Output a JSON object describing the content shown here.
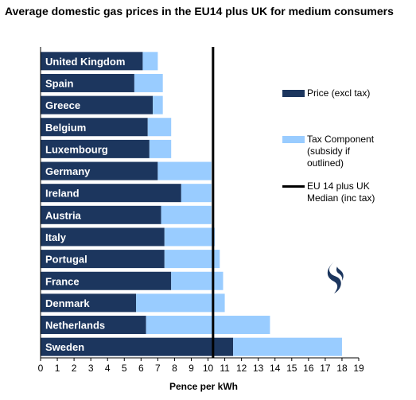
{
  "chart_data": {
    "type": "bar",
    "orientation": "horizontal",
    "stacked": true,
    "title": "Average domestic gas prices in the EU14 plus UK for medium consumers",
    "xlabel": "Pence per kWh",
    "ylabel": "",
    "xlim": [
      0,
      19
    ],
    "xticks": [
      "0",
      "1",
      "2",
      "3",
      "4",
      "5",
      "6",
      "7",
      "8",
      "9",
      "10",
      "11",
      "12",
      "13",
      "14",
      "15",
      "16",
      "17",
      "18",
      "19"
    ],
    "categories": [
      "United Kingdom",
      "Spain",
      "Greece",
      "Belgium",
      "Luxembourg",
      "Germany",
      "Ireland",
      "Austria",
      "Italy",
      "Portugal",
      "France",
      "Denmark",
      "Netherlands",
      "Sweden"
    ],
    "series": [
      {
        "name": "Price (excl tax)",
        "color": "#1c365e",
        "values": [
          6.1,
          5.6,
          6.7,
          6.4,
          6.5,
          7.0,
          8.4,
          7.2,
          7.4,
          7.4,
          7.8,
          5.7,
          6.3,
          11.5
        ]
      },
      {
        "name": "Tax Component (subsidy if outlined)",
        "color": "#99ccff",
        "values": [
          0.9,
          1.7,
          0.6,
          1.4,
          1.3,
          3.2,
          1.8,
          3.0,
          3.0,
          3.3,
          3.1,
          5.3,
          7.4,
          6.5
        ]
      }
    ],
    "reference_line": {
      "name": "EU 14 plus UK Median (inc tax)",
      "value": 10.3,
      "color": "#000000"
    },
    "grid": false,
    "legend_position": "right"
  },
  "legend": {
    "price_label": "Price (excl tax)",
    "tax_label_lines": [
      "Tax Component",
      "(subsidy if",
      "outlined)"
    ],
    "median_label_lines": [
      "EU 14 plus UK",
      "Median (inc tax)"
    ]
  },
  "logo": {
    "icon": "gas-flame-logo",
    "color": "#1c365e"
  }
}
